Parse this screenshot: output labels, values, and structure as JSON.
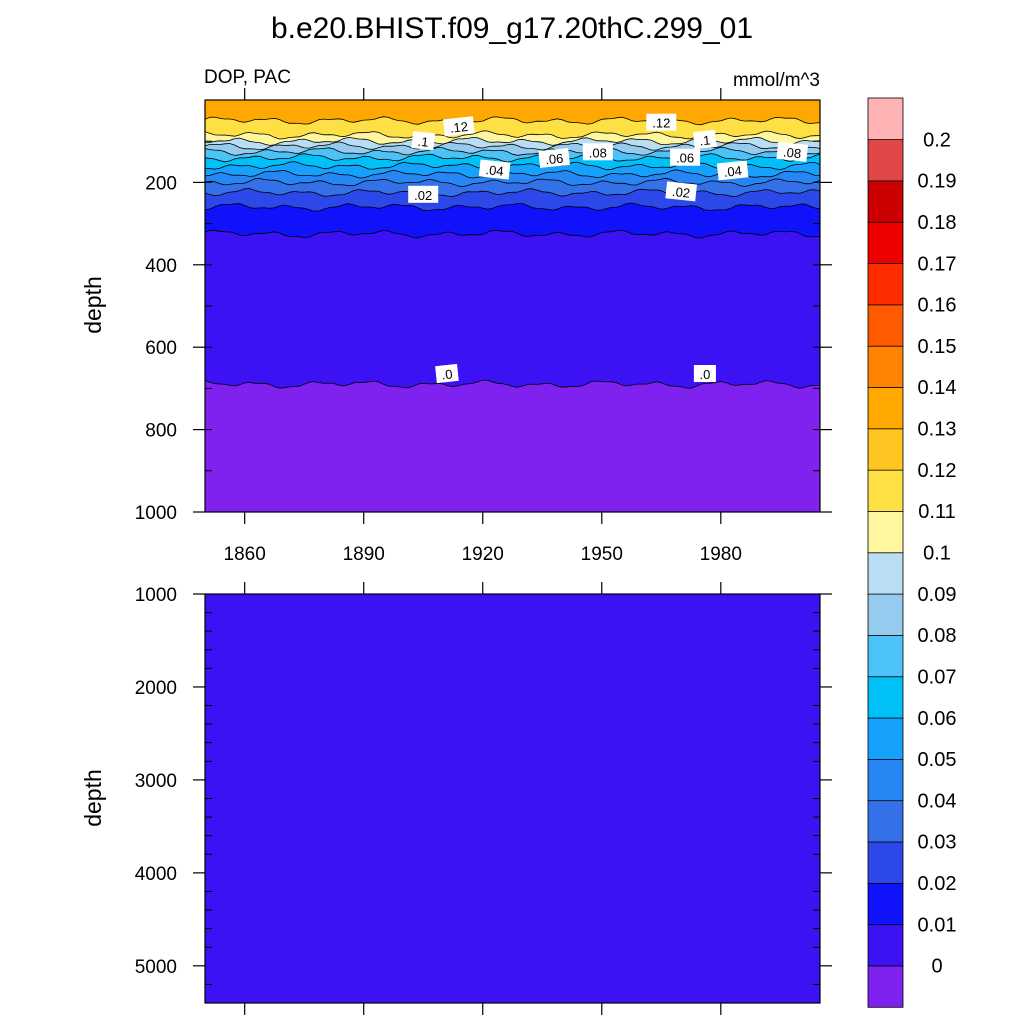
{
  "chart_data": [
    {
      "type": "contour",
      "title": "b.e20.BHIST.f09_g17.20thC.299_01",
      "left_label": "DOP, PAC",
      "right_label": "mmol/m^3",
      "ylabel": "depth",
      "y_reversed": true,
      "xlim": [
        1850,
        2005
      ],
      "ylim": [
        0,
        1000
      ],
      "x_ticks": [
        1860,
        1890,
        1920,
        1950,
        1980
      ],
      "y_ticks": [
        200,
        400,
        600,
        800,
        1000
      ],
      "contour_depths": [
        {
          "level": 0.12,
          "depth": 50
        },
        {
          "level": 0.11,
          "depth": 85
        },
        {
          "level": 0.1,
          "depth": 100
        },
        {
          "level": 0.09,
          "depth": 112
        },
        {
          "level": 0.08,
          "depth": 125
        },
        {
          "level": 0.07,
          "depth": 140
        },
        {
          "level": 0.06,
          "depth": 160
        },
        {
          "level": 0.05,
          "depth": 180
        },
        {
          "level": 0.04,
          "depth": 200
        },
        {
          "level": 0.03,
          "depth": 225
        },
        {
          "level": 0.02,
          "depth": 260
        },
        {
          "level": 0.01,
          "depth": 325
        },
        {
          "level": 0.0,
          "depth": 690
        }
      ],
      "contour_labels": [
        {
          "text": ".12",
          "x": 1914,
          "y": 65
        },
        {
          "text": ".12",
          "x": 1965,
          "y": 55
        },
        {
          "text": ".1",
          "x": 1905,
          "y": 100
        },
        {
          "text": ".1",
          "x": 1976,
          "y": 97
        },
        {
          "text": ".08",
          "x": 1949,
          "y": 127
        },
        {
          "text": ".08",
          "x": 1998,
          "y": 127
        },
        {
          "text": ".06",
          "x": 1938,
          "y": 142
        },
        {
          "text": ".06",
          "x": 1971,
          "y": 140
        },
        {
          "text": ".04",
          "x": 1923,
          "y": 170
        },
        {
          "text": ".04",
          "x": 1983,
          "y": 172
        },
        {
          "text": ".02",
          "x": 1905,
          "y": 230
        },
        {
          "text": ".02",
          "x": 1970,
          "y": 223
        },
        {
          "text": ".0",
          "x": 1911,
          "y": 665
        },
        {
          "text": ".0",
          "x": 1976,
          "y": 665
        }
      ]
    },
    {
      "type": "contour",
      "ylabel": "depth",
      "y_reversed": true,
      "xlim": [
        1850,
        2005
      ],
      "ylim": [
        1000,
        5400
      ],
      "y_ticks": [
        1000,
        2000,
        3000,
        4000,
        5000
      ],
      "fill_level": 0
    }
  ],
  "colorbar": {
    "levels": [
      0,
      0.01,
      0.02,
      0.03,
      0.04,
      0.05,
      0.06,
      0.07,
      0.08,
      0.09,
      0.1,
      0.11,
      0.12,
      0.13,
      0.14,
      0.15,
      0.16,
      0.17,
      0.18,
      0.19,
      0.2
    ],
    "labels": [
      "0",
      "0.01",
      "0.02",
      "0.03",
      "0.04",
      "0.05",
      "0.06",
      "0.07",
      "0.08",
      "0.09",
      "0.1",
      "0.11",
      "0.12",
      "0.13",
      "0.14",
      "0.15",
      "0.16",
      "0.17",
      "0.18",
      "0.19",
      "0.2"
    ],
    "colors": [
      "#7f22f0",
      "#3c12f4",
      "#0f12fa",
      "#2c48e8",
      "#3470e8",
      "#2686f4",
      "#16a2fc",
      "#00c0f8",
      "#4dc2f6",
      "#94cbee",
      "#b9ddf2",
      "#fff7a0",
      "#ffe044",
      "#ffc520",
      "#ffa800",
      "#ff8200",
      "#ff5a00",
      "#ff2c00",
      "#ee0000",
      "#cc0000",
      "#e04848",
      "#ffb2b4"
    ]
  }
}
